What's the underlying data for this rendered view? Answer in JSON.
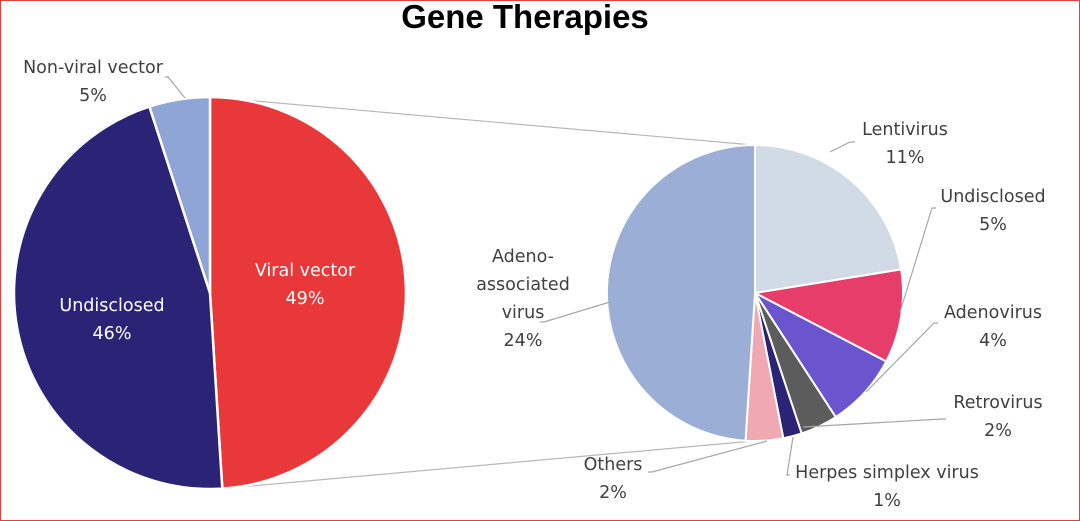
{
  "chart_data": [
    {
      "type": "pie",
      "title": "Gene Therapies",
      "slices": [
        {
          "label": "Viral vector",
          "value": 49,
          "value_label": "49%",
          "color": "#e8383a"
        },
        {
          "label": "Undisclosed",
          "value": 46,
          "value_label": "46%",
          "color": "#2b2375"
        },
        {
          "label": "Non-viral vector",
          "value": 5,
          "value_label": "5%",
          "color": "#8ea5d6"
        }
      ]
    },
    {
      "type": "pie",
      "title": "",
      "breakdown_of": "Viral vector",
      "slices": [
        {
          "label": "Lentivirus",
          "value": 11,
          "value_label": "11%",
          "color": "#d1dbe6"
        },
        {
          "label": "Undisclosed",
          "value": 5,
          "value_label": "5%",
          "color": "#e63d6b"
        },
        {
          "label": "Adenovirus",
          "value": 4,
          "value_label": "4%",
          "color": "#6a55cf"
        },
        {
          "label": "Retrovirus",
          "value": 2,
          "value_label": "2%",
          "color": "#5c5c5c"
        },
        {
          "label": "Herpes simplex virus",
          "value": 1,
          "value_label": "1%",
          "color": "#2b2375"
        },
        {
          "label": "Others",
          "value": 2,
          "value_label": "2%",
          "color": "#f0a9b2"
        },
        {
          "label": "Adeno-associated virus",
          "value": 24,
          "value_label": "24%",
          "color": "#9aaed6"
        }
      ]
    }
  ]
}
